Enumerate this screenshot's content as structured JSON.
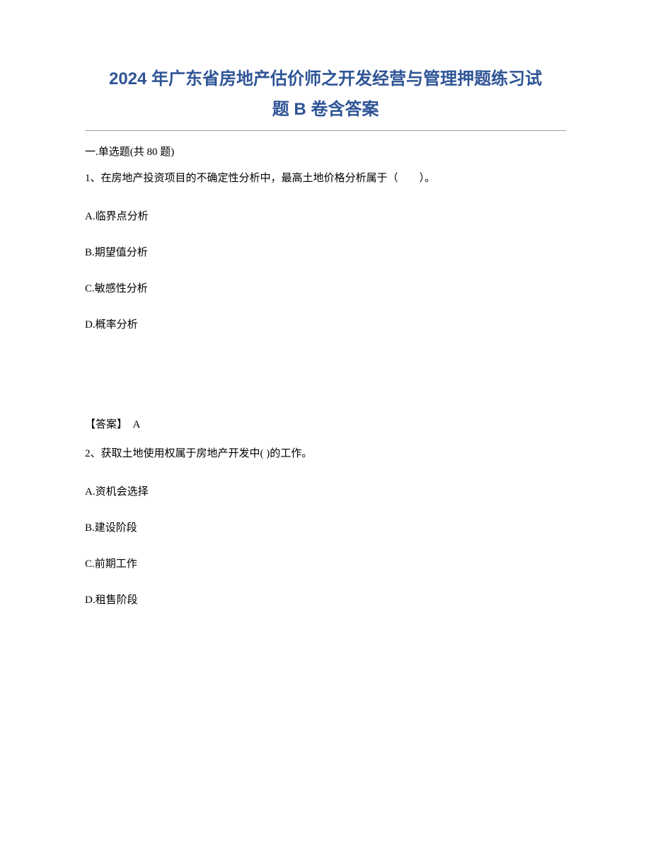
{
  "title": {
    "line1": "2024 年广东省房地产估价师之开发经营与管理押题练习试",
    "line2": "题 B 卷含答案"
  },
  "section": {
    "header": "一.单选题(共 80 题)"
  },
  "questions": [
    {
      "number": "1、",
      "text": "在房地产投资项目的不确定性分析中，最高土地价格分析属于（　　）。",
      "options": {
        "A": "A.临界点分析",
        "B": "B.期望值分析",
        "C": "C.敏感性分析",
        "D": "D.概率分析"
      },
      "answer_label": "【答案】",
      "answer_value": "A"
    },
    {
      "number": "2、",
      "text": "获取土地使用权属于房地产开发中( )的工作。",
      "options": {
        "A": "A.资机会选择",
        "B": "B.建设阶段",
        "C": "C.前期工作",
        "D": "D.租售阶段"
      }
    }
  ],
  "colors": {
    "title_color": "#2e5496",
    "text_color": "#000000",
    "background": "#ffffff",
    "divider": "#a0a0a0"
  }
}
